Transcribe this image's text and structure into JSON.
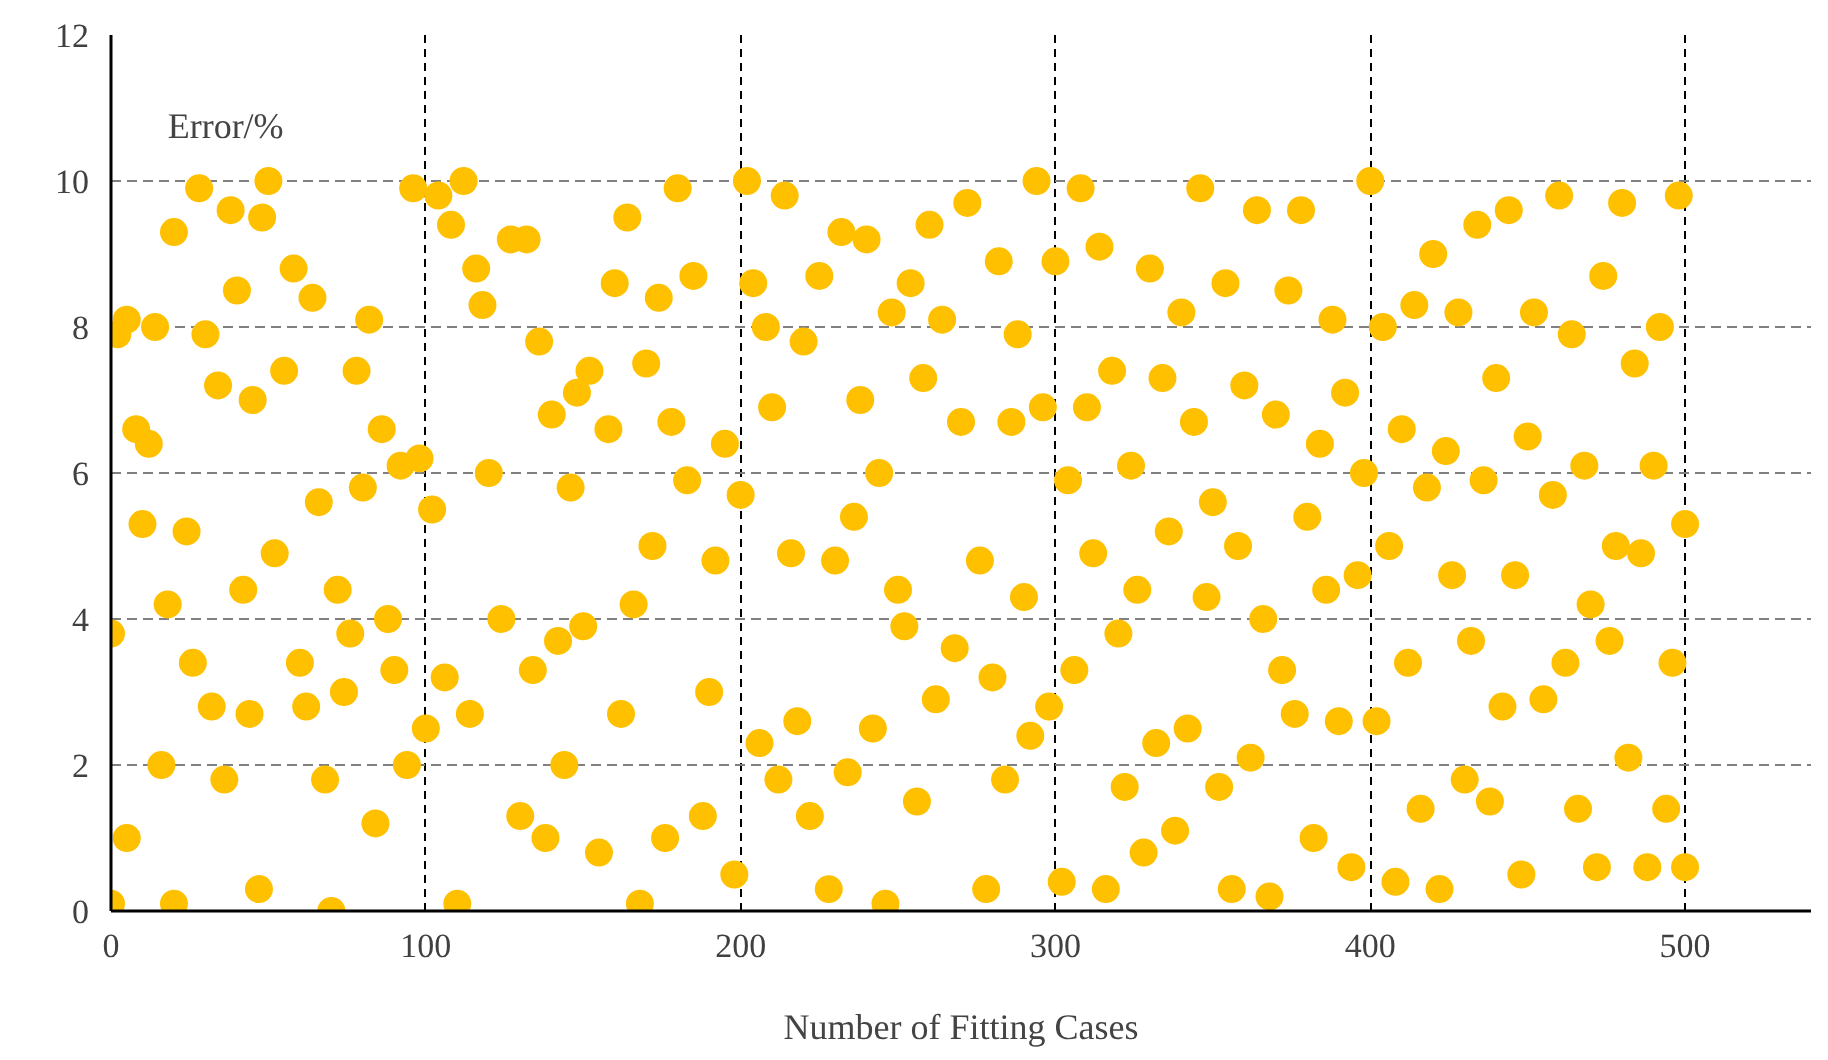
{
  "chart_data": {
    "type": "scatter",
    "xlabel": "Number of Fitting Cases",
    "ylabel": "Error/%",
    "xlim": [
      0,
      540
    ],
    "ylim": [
      0,
      12
    ],
    "xticks": [
      0,
      100,
      200,
      300,
      400,
      500
    ],
    "yticks": [
      0,
      2,
      4,
      6,
      8,
      10,
      12
    ],
    "grid": true,
    "marker": "circle",
    "series": [
      {
        "color": "#ffc000",
        "x": [
          0,
          0,
          2,
          5,
          5,
          8,
          10,
          12,
          14,
          16,
          18,
          20,
          20,
          24,
          26,
          28,
          30,
          32,
          34,
          36,
          38,
          40,
          42,
          44,
          45,
          47,
          48,
          50,
          52,
          55,
          58,
          60,
          62,
          64,
          66,
          68,
          70,
          72,
          74,
          76,
          78,
          80,
          82,
          84,
          86,
          88,
          90,
          92,
          94,
          96,
          98,
          100,
          102,
          104,
          106,
          108,
          110,
          112,
          114,
          116,
          118,
          120,
          124,
          127,
          130,
          132,
          134,
          136,
          138,
          140,
          142,
          144,
          146,
          148,
          150,
          152,
          155,
          158,
          160,
          162,
          164,
          166,
          168,
          170,
          172,
          174,
          176,
          178,
          180,
          183,
          185,
          188,
          190,
          192,
          195,
          198,
          200,
          202,
          204,
          206,
          208,
          210,
          212,
          214,
          216,
          218,
          220,
          222,
          225,
          228,
          230,
          232,
          234,
          236,
          238,
          240,
          242,
          244,
          246,
          248,
          250,
          252,
          254,
          256,
          258,
          260,
          262,
          264,
          268,
          270,
          272,
          276,
          278,
          280,
          282,
          284,
          286,
          288,
          290,
          292,
          294,
          296,
          298,
          300,
          302,
          304,
          306,
          308,
          310,
          312,
          314,
          316,
          318,
          320,
          322,
          324,
          326,
          328,
          330,
          332,
          334,
          336,
          338,
          340,
          342,
          344,
          346,
          348,
          350,
          352,
          354,
          356,
          358,
          360,
          362,
          364,
          366,
          368,
          370,
          372,
          374,
          376,
          378,
          380,
          382,
          384,
          386,
          388,
          390,
          392,
          394,
          396,
          398,
          400,
          402,
          404,
          406,
          408,
          410,
          412,
          414,
          416,
          418,
          420,
          422,
          424,
          426,
          428,
          430,
          432,
          434,
          436,
          438,
          440,
          442,
          444,
          446,
          448,
          450,
          452,
          455,
          458,
          460,
          462,
          464,
          466,
          468,
          470,
          472,
          474,
          476,
          478,
          480,
          482,
          484,
          486,
          488,
          490,
          492,
          494,
          496,
          498,
          500,
          500
        ],
        "values": [
          0.1,
          3.8,
          7.9,
          1.0,
          8.1,
          6.6,
          5.3,
          6.4,
          8.0,
          2.0,
          4.2,
          9.3,
          0.1,
          5.2,
          3.4,
          9.9,
          7.9,
          2.8,
          7.2,
          1.8,
          9.6,
          8.5,
          4.4,
          2.7,
          7.0,
          0.3,
          9.5,
          10.0,
          4.9,
          7.4,
          8.8,
          3.4,
          2.8,
          8.4,
          5.6,
          1.8,
          0.0,
          4.4,
          3.0,
          3.8,
          7.4,
          5.8,
          8.1,
          1.2,
          6.6,
          4.0,
          3.3,
          6.1,
          2.0,
          9.9,
          6.2,
          2.5,
          5.5,
          9.8,
          3.2,
          9.4,
          0.1,
          10.0,
          2.7,
          8.8,
          8.3,
          6.0,
          4.0,
          9.2,
          1.3,
          9.2,
          3.3,
          7.8,
          1.0,
          6.8,
          3.7,
          2.0,
          5.8,
          7.1,
          3.9,
          7.4,
          0.8,
          6.6,
          8.6,
          2.7,
          9.5,
          4.2,
          0.1,
          7.5,
          5.0,
          8.4,
          1.0,
          6.7,
          9.9,
          5.9,
          8.7,
          1.3,
          3.0,
          4.8,
          6.4,
          0.5,
          5.7,
          10.0,
          8.6,
          2.3,
          8.0,
          6.9,
          1.8,
          9.8,
          4.9,
          2.6,
          7.8,
          1.3,
          8.7,
          0.3,
          4.8,
          9.3,
          1.9,
          5.4,
          7.0,
          9.2,
          2.5,
          6.0,
          0.1,
          8.2,
          4.4,
          3.9,
          8.6,
          1.5,
          7.3,
          9.4,
          2.9,
          8.1,
          3.6,
          6.7,
          9.7,
          4.8,
          0.3,
          3.2,
          8.9,
          1.8,
          6.7,
          7.9,
          4.3,
          2.4,
          10.0,
          6.9,
          2.8,
          8.9,
          0.4,
          5.9,
          3.3,
          9.9,
          6.9,
          4.9,
          9.1,
          0.3,
          7.4,
          3.8,
          1.7,
          6.1,
          4.4,
          0.8,
          8.8,
          2.3,
          7.3,
          5.2,
          1.1,
          8.2,
          2.5,
          6.7,
          9.9,
          4.3,
          5.6,
          1.7,
          8.6,
          0.3,
          5.0,
          7.2,
          2.1,
          9.6,
          4.0,
          0.2,
          6.8,
          3.3,
          8.5,
          2.7,
          9.6,
          5.4,
          1.0,
          6.4,
          4.4,
          8.1,
          2.6,
          7.1,
          0.6,
          4.6,
          6.0,
          10.0,
          2.6,
          8.0,
          5.0,
          0.4,
          6.6,
          3.4,
          8.3,
          1.4,
          5.8,
          9.0,
          0.3,
          6.3,
          4.6,
          8.2,
          1.8,
          3.7,
          9.4,
          5.9,
          1.5,
          7.3,
          2.8,
          9.6,
          4.6,
          0.5,
          6.5,
          8.2,
          2.9,
          5.7,
          9.8,
          3.4,
          7.9,
          1.4,
          6.1,
          4.2,
          0.6,
          8.7,
          3.7,
          5.0,
          9.7,
          2.1,
          7.5,
          4.9,
          0.6,
          6.1,
          8.0,
          1.4,
          3.4,
          9.8,
          5.3,
          0.6
        ]
      }
    ]
  }
}
